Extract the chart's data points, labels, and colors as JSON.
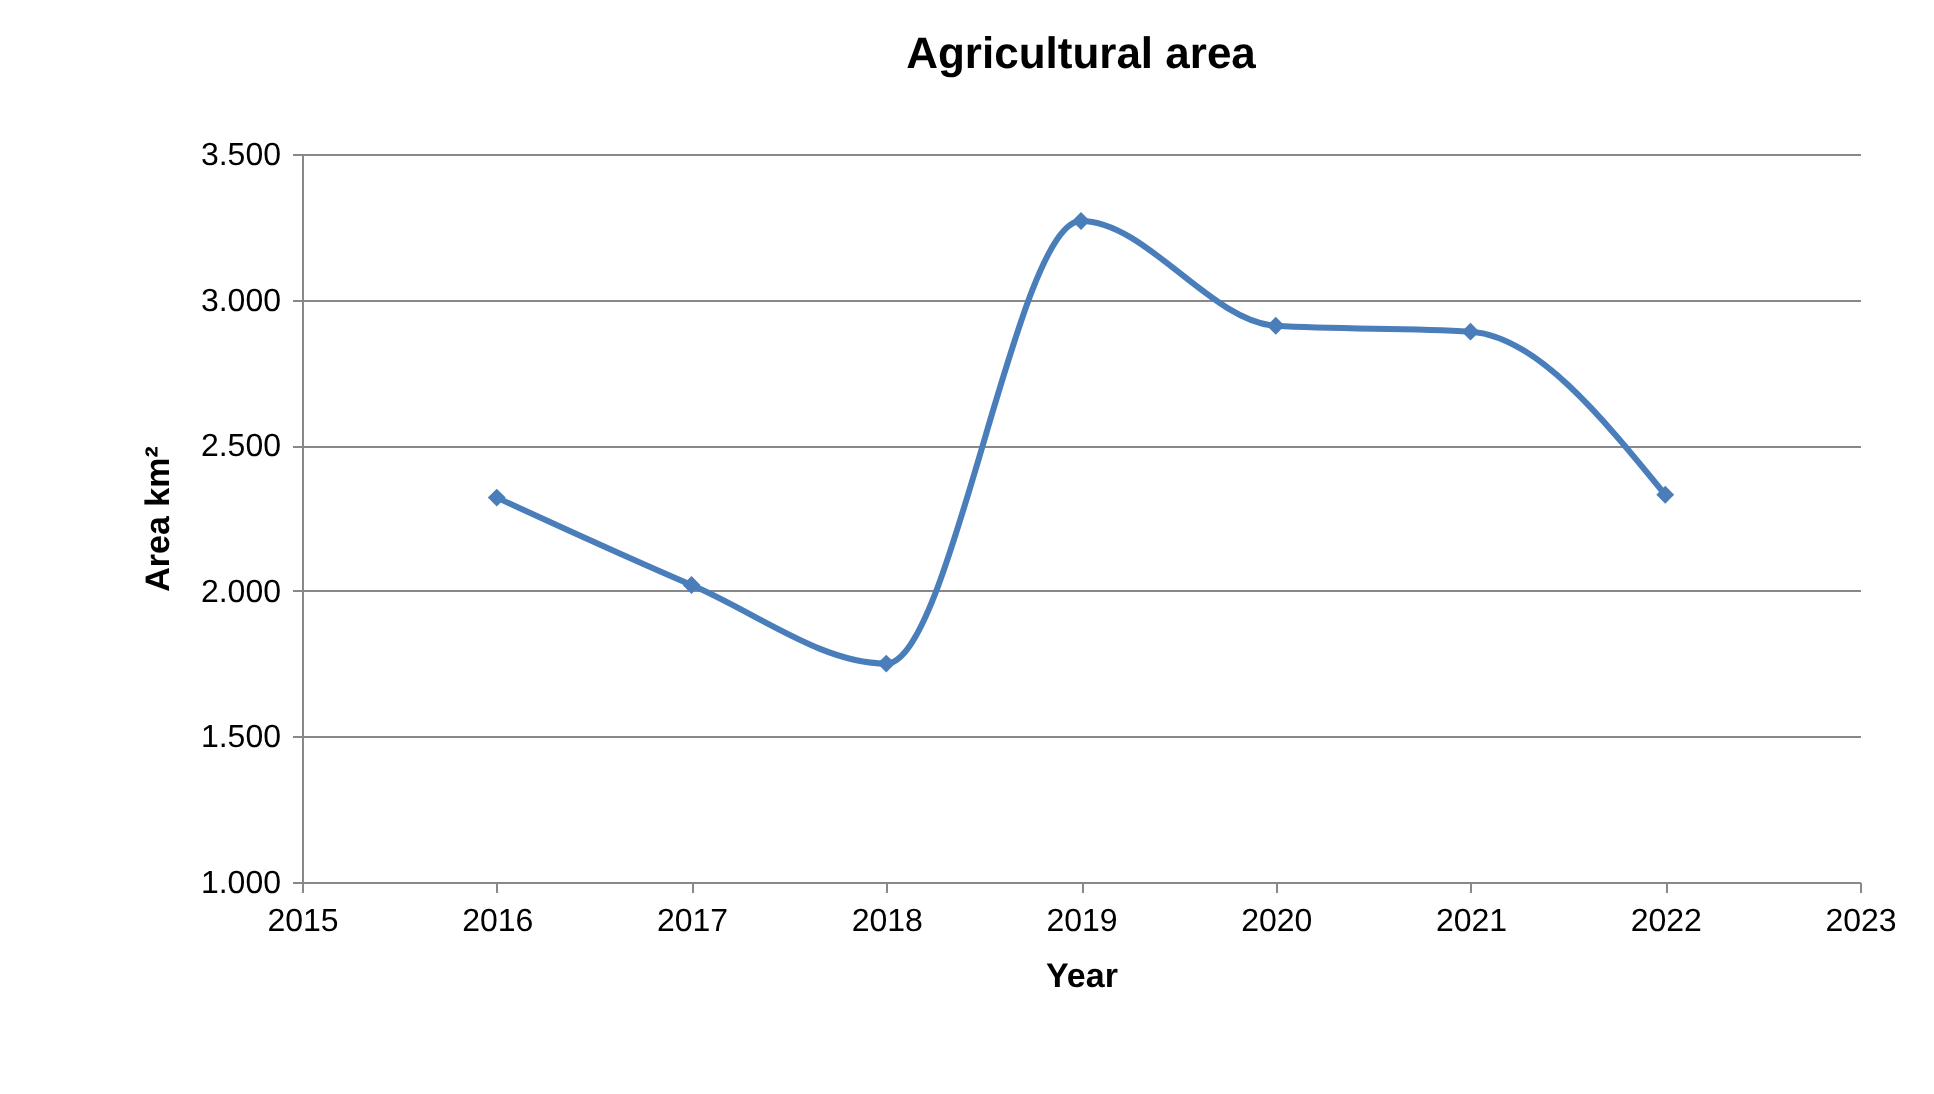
{
  "chart_data": {
    "type": "line",
    "title": "Agricultural area",
    "xlabel": "Year",
    "ylabel": "Area km²",
    "x": [
      2016,
      2017,
      2018,
      2019,
      2020,
      2021,
      2022
    ],
    "series": [
      {
        "color": "#4a7ebb",
        "values": [
          2320,
          2020,
          1750,
          3270,
          2910,
          2890,
          2330
        ]
      }
    ],
    "xlim": [
      2015,
      2023
    ],
    "xticks": [
      2015,
      2016,
      2017,
      2018,
      2019,
      2020,
      2021,
      2022,
      2023
    ],
    "ylim": [
      1000,
      3500
    ],
    "yticks": [
      {
        "value": 1000,
        "label": "1.000"
      },
      {
        "value": 1500,
        "label": "1.500"
      },
      {
        "value": 2000,
        "label": "2.000"
      },
      {
        "value": 2500,
        "label": "2.500"
      },
      {
        "value": 3000,
        "label": "3.000"
      },
      {
        "value": 3500,
        "label": "3.500"
      }
    ],
    "grid": "y",
    "marker": "diamond",
    "line_style": "solid"
  }
}
